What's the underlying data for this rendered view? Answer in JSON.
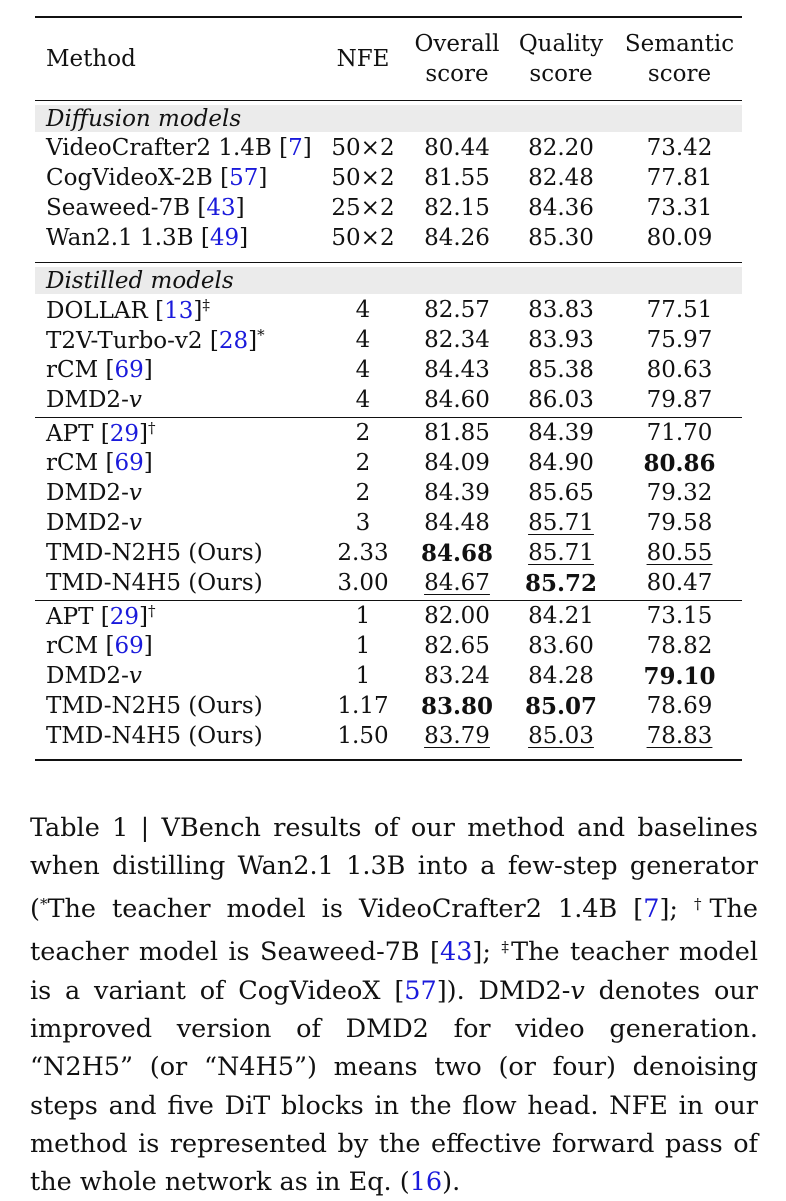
{
  "table": {
    "header": [
      {
        "lines": [
          "Method"
        ]
      },
      {
        "lines": [
          "NFE"
        ]
      },
      {
        "lines": [
          "Overall",
          "score"
        ]
      },
      {
        "lines": [
          "Quality",
          "score"
        ]
      },
      {
        "lines": [
          "Semantic",
          "score"
        ]
      }
    ],
    "sections": [
      {
        "title": "Diffusion models",
        "groups": [
          [
            {
              "method": [
                {
                  "text": "VideoCrafter2 1.4B ["
                },
                {
                  "text": "7",
                  "kind": "link"
                },
                {
                  "text": "]"
                }
              ],
              "cells": [
                {
                  "text": "50×2"
                },
                {
                  "text": "80.44"
                },
                {
                  "text": "82.20"
                },
                {
                  "text": "73.42"
                }
              ]
            },
            {
              "method": [
                {
                  "text": "CogVideoX-2B ["
                },
                {
                  "text": "57",
                  "kind": "link"
                },
                {
                  "text": "]"
                }
              ],
              "cells": [
                {
                  "text": "50×2"
                },
                {
                  "text": "81.55"
                },
                {
                  "text": "82.48"
                },
                {
                  "text": "77.81"
                }
              ]
            },
            {
              "method": [
                {
                  "text": "Seaweed-7B ["
                },
                {
                  "text": "43",
                  "kind": "link"
                },
                {
                  "text": "]"
                }
              ],
              "cells": [
                {
                  "text": "25×2"
                },
                {
                  "text": "82.15"
                },
                {
                  "text": "84.36"
                },
                {
                  "text": "73.31"
                }
              ]
            },
            {
              "method": [
                {
                  "text": "Wan2.1 1.3B ["
                },
                {
                  "text": "49",
                  "kind": "link"
                },
                {
                  "text": "]"
                }
              ],
              "cells": [
                {
                  "text": "50×2"
                },
                {
                  "text": "84.26"
                },
                {
                  "text": "85.30"
                },
                {
                  "text": "80.09"
                }
              ]
            }
          ]
        ]
      },
      {
        "title": "Distilled models",
        "groups": [
          [
            {
              "method": [
                {
                  "text": "DOLLAR ["
                },
                {
                  "text": "13",
                  "kind": "link"
                },
                {
                  "text": "]"
                },
                {
                  "text": "‡",
                  "kind": "sup"
                }
              ],
              "cells": [
                {
                  "text": "4"
                },
                {
                  "text": "82.57"
                },
                {
                  "text": "83.83"
                },
                {
                  "text": "77.51"
                }
              ]
            },
            {
              "method": [
                {
                  "text": "T2V-Turbo-v2 ["
                },
                {
                  "text": "28",
                  "kind": "link"
                },
                {
                  "text": "]"
                },
                {
                  "text": "*",
                  "kind": "sup"
                }
              ],
              "cells": [
                {
                  "text": "4"
                },
                {
                  "text": "82.34"
                },
                {
                  "text": "83.93"
                },
                {
                  "text": "75.97"
                }
              ]
            },
            {
              "method": [
                {
                  "text": "rCM ["
                },
                {
                  "text": "69",
                  "kind": "link"
                },
                {
                  "text": "]"
                }
              ],
              "cells": [
                {
                  "text": "4"
                },
                {
                  "text": "84.43"
                },
                {
                  "text": "85.38"
                },
                {
                  "text": "80.63"
                }
              ]
            },
            {
              "method": [
                {
                  "text": "DMD2-"
                },
                {
                  "text": "v",
                  "kind": "italic"
                }
              ],
              "cells": [
                {
                  "text": "4"
                },
                {
                  "text": "84.60"
                },
                {
                  "text": "86.03"
                },
                {
                  "text": "79.87"
                }
              ]
            }
          ],
          [
            {
              "method": [
                {
                  "text": "APT ["
                },
                {
                  "text": "29",
                  "kind": "link"
                },
                {
                  "text": "]"
                },
                {
                  "text": "†",
                  "kind": "sup"
                }
              ],
              "cells": [
                {
                  "text": "2"
                },
                {
                  "text": "81.85"
                },
                {
                  "text": "84.39"
                },
                {
                  "text": "71.70"
                }
              ]
            },
            {
              "method": [
                {
                  "text": "rCM ["
                },
                {
                  "text": "69",
                  "kind": "link"
                },
                {
                  "text": "]"
                }
              ],
              "cells": [
                {
                  "text": "2"
                },
                {
                  "text": "84.09"
                },
                {
                  "text": "84.90"
                },
                {
                  "text": "80.86",
                  "style": "bold"
                }
              ]
            },
            {
              "method": [
                {
                  "text": "DMD2-"
                },
                {
                  "text": "v",
                  "kind": "italic"
                }
              ],
              "cells": [
                {
                  "text": "2"
                },
                {
                  "text": "84.39"
                },
                {
                  "text": "85.65"
                },
                {
                  "text": "79.32"
                }
              ]
            },
            {
              "method": [
                {
                  "text": "DMD2-"
                },
                {
                  "text": "v",
                  "kind": "italic"
                }
              ],
              "cells": [
                {
                  "text": "3"
                },
                {
                  "text": "84.48"
                },
                {
                  "text": "85.71",
                  "style": "underline"
                },
                {
                  "text": "79.58"
                }
              ]
            },
            {
              "method": [
                {
                  "text": "TMD-N2H5 (Ours)"
                }
              ],
              "cells": [
                {
                  "text": "2.33"
                },
                {
                  "text": "84.68",
                  "style": "bold"
                },
                {
                  "text": "85.71",
                  "style": "underline"
                },
                {
                  "text": "80.55",
                  "style": "underline"
                }
              ]
            },
            {
              "method": [
                {
                  "text": "TMD-N4H5 (Ours)"
                }
              ],
              "cells": [
                {
                  "text": "3.00"
                },
                {
                  "text": "84.67",
                  "style": "underline"
                },
                {
                  "text": "85.72",
                  "style": "bold"
                },
                {
                  "text": "80.47"
                }
              ]
            }
          ],
          [
            {
              "method": [
                {
                  "text": "APT ["
                },
                {
                  "text": "29",
                  "kind": "link"
                },
                {
                  "text": "]"
                },
                {
                  "text": "†",
                  "kind": "sup"
                }
              ],
              "cells": [
                {
                  "text": "1"
                },
                {
                  "text": "82.00"
                },
                {
                  "text": "84.21"
                },
                {
                  "text": "73.15"
                }
              ]
            },
            {
              "method": [
                {
                  "text": "rCM ["
                },
                {
                  "text": "69",
                  "kind": "link"
                },
                {
                  "text": "]"
                }
              ],
              "cells": [
                {
                  "text": "1"
                },
                {
                  "text": "82.65"
                },
                {
                  "text": "83.60"
                },
                {
                  "text": "78.82"
                }
              ]
            },
            {
              "method": [
                {
                  "text": "DMD2-"
                },
                {
                  "text": "v",
                  "kind": "italic"
                }
              ],
              "cells": [
                {
                  "text": "1"
                },
                {
                  "text": "83.24"
                },
                {
                  "text": "84.28"
                },
                {
                  "text": "79.10",
                  "style": "bold"
                }
              ]
            },
            {
              "method": [
                {
                  "text": "TMD-N2H5 (Ours)"
                }
              ],
              "cells": [
                {
                  "text": "1.17"
                },
                {
                  "text": "83.80",
                  "style": "bold"
                },
                {
                  "text": "85.07",
                  "style": "bold"
                },
                {
                  "text": "78.69"
                }
              ]
            },
            {
              "method": [
                {
                  "text": "TMD-N4H5 (Ours)"
                }
              ],
              "cells": [
                {
                  "text": "1.50"
                },
                {
                  "text": "83.79",
                  "style": "underline"
                },
                {
                  "text": "85.03",
                  "style": "underline"
                },
                {
                  "text": "78.83",
                  "style": "underline"
                }
              ]
            }
          ]
        ]
      }
    ]
  },
  "caption": {
    "segments": [
      {
        "text": "Table 1 | VBench results of our method and baselines when distilling Wan2.1 1.3B into a few-step generator ("
      },
      {
        "text": "*",
        "kind": "sup"
      },
      {
        "text": "The teacher model is VideoCrafter2 1.4B ["
      },
      {
        "text": "7",
        "kind": "link"
      },
      {
        "text": "]; "
      },
      {
        "text": "†",
        "kind": "sup"
      },
      {
        "text": "The teacher model is Seaweed-7B ["
      },
      {
        "text": "43",
        "kind": "link"
      },
      {
        "text": "]; "
      },
      {
        "text": "‡",
        "kind": "sup"
      },
      {
        "text": "The teacher model is a variant of CogVideoX ["
      },
      {
        "text": "57",
        "kind": "link"
      },
      {
        "text": "]).  DMD2-"
      },
      {
        "text": "v",
        "kind": "italic"
      },
      {
        "text": " denotes our improved version of DMD2 for video generation. “N2H5” (or “N4H5”) means two (or four) denoising steps and five DiT blocks in the flow head. NFE in our method is represented by the effective forward pass of the whole network as in Eq. ("
      },
      {
        "text": "16",
        "kind": "link"
      },
      {
        "text": ")."
      }
    ]
  }
}
